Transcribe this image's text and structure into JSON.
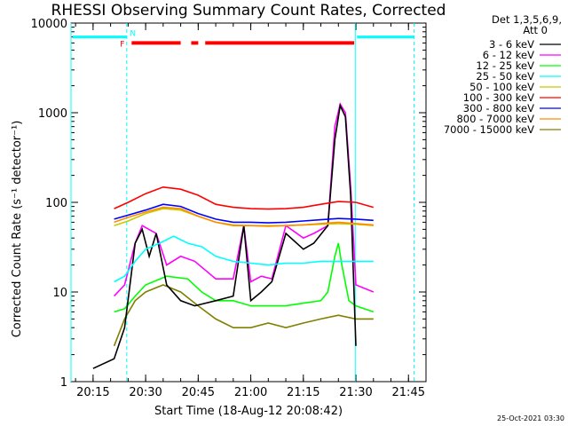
{
  "chart_data": {
    "type": "line",
    "title": "RHESSI Observing Summary Count Rates, Corrected",
    "xlabel": "Start Time (18-Aug-12 20:08:42)",
    "ylabel": "Corrected Count Rate (s⁻¹ detector⁻¹)",
    "yscale": "log",
    "ylim": [
      1,
      10000
    ],
    "xlim_minutes_since_2000": [
      1208.7,
      1310
    ],
    "x_ticks": [
      "20:15",
      "20:30",
      "20:45",
      "21:00",
      "21:15",
      "21:30",
      "21:45"
    ],
    "x_tick_minutes": [
      1215,
      1230,
      1245,
      1260,
      1275,
      1290,
      1305
    ],
    "y_ticks": [
      "1",
      "10",
      "100",
      "1000",
      "10000"
    ],
    "y_tick_values": [
      1,
      10,
      100,
      1000,
      10000
    ],
    "legend_header": [
      "Det 1,3,5,6,9,",
      "Att 0"
    ],
    "series": [
      {
        "name": "3 - 6 keV",
        "color": "#000000",
        "x": [
          1215,
          1221,
          1224,
          1227,
          1229,
          1231,
          1233,
          1236,
          1240,
          1244,
          1250,
          1255,
          1258,
          1260,
          1263,
          1266,
          1270,
          1275,
          1278,
          1282,
          1284,
          1285.5,
          1287,
          1288.5,
          1290
        ],
        "y": [
          1.4,
          1.8,
          4,
          35,
          50,
          25,
          45,
          12,
          8,
          7,
          8,
          9,
          55,
          8,
          10,
          13,
          45,
          30,
          35,
          55,
          500,
          1200,
          900,
          120,
          2.5
        ]
      },
      {
        "name": "6 - 12 keV",
        "color": "#ff00ff",
        "x": [
          1221,
          1224,
          1227,
          1229,
          1233,
          1236,
          1240,
          1244,
          1250,
          1255,
          1258,
          1260,
          1263,
          1266,
          1270,
          1275,
          1278,
          1282,
          1284,
          1285.5,
          1287,
          1288.5,
          1290,
          1295
        ],
        "y": [
          9,
          12,
          35,
          55,
          45,
          20,
          25,
          22,
          14,
          14,
          55,
          13,
          15,
          14,
          55,
          40,
          45,
          55,
          700,
          1250,
          1000,
          150,
          12,
          10
        ]
      },
      {
        "name": "12 - 25 keV",
        "color": "#00ff00",
        "x": [
          1221,
          1224,
          1227,
          1230,
          1236,
          1242,
          1246,
          1250,
          1255,
          1260,
          1265,
          1270,
          1275,
          1280,
          1282,
          1284,
          1285,
          1286,
          1288,
          1290,
          1295
        ],
        "y": [
          6,
          6.5,
          9,
          12,
          15,
          14,
          10,
          8,
          8,
          7,
          7,
          7,
          7.5,
          8,
          10,
          25,
          35,
          20,
          8,
          7,
          6
        ]
      },
      {
        "name": "25 - 50 keV",
        "color": "#00ffff",
        "x": [
          1221,
          1224,
          1227,
          1230,
          1234,
          1238,
          1242,
          1246,
          1250,
          1255,
          1260,
          1265,
          1270,
          1275,
          1280,
          1285,
          1290,
          1295
        ],
        "y": [
          13,
          15,
          22,
          30,
          35,
          42,
          35,
          32,
          25,
          22,
          21,
          20,
          21,
          21,
          22,
          22,
          22,
          22
        ]
      },
      {
        "name": "50 - 100 keV",
        "color": "#c8c800",
        "x": [
          1221,
          1225,
          1230,
          1235,
          1240,
          1245,
          1250,
          1255,
          1260,
          1265,
          1270,
          1275,
          1280,
          1285,
          1290,
          1295
        ],
        "y": [
          55,
          62,
          75,
          85,
          82,
          70,
          60,
          56,
          55,
          55,
          55,
          56,
          57,
          58,
          57,
          55
        ]
      },
      {
        "name": "100 - 300 keV",
        "color": "#ff0000",
        "x": [
          1221,
          1225,
          1230,
          1235,
          1240,
          1245,
          1250,
          1255,
          1260,
          1265,
          1270,
          1275,
          1280,
          1285,
          1290,
          1295
        ],
        "y": [
          85,
          100,
          125,
          148,
          140,
          120,
          95,
          88,
          85,
          84,
          85,
          88,
          95,
          102,
          100,
          88
        ]
      },
      {
        "name": "300 - 800 keV",
        "color": "#0000ff",
        "x": [
          1221,
          1225,
          1230,
          1235,
          1240,
          1245,
          1250,
          1255,
          1260,
          1265,
          1270,
          1275,
          1280,
          1285,
          1290,
          1295
        ],
        "y": [
          65,
          72,
          82,
          95,
          90,
          75,
          65,
          60,
          60,
          59,
          60,
          62,
          64,
          66,
          65,
          63
        ]
      },
      {
        "name": "800 - 7000 keV",
        "color": "#ff8c00",
        "x": [
          1221,
          1225,
          1230,
          1235,
          1240,
          1245,
          1250,
          1255,
          1260,
          1265,
          1270,
          1275,
          1280,
          1285,
          1290,
          1295
        ],
        "y": [
          60,
          68,
          78,
          88,
          85,
          70,
          60,
          55,
          55,
          54,
          55,
          56,
          58,
          60,
          58,
          56
        ]
      },
      {
        "name": "7000 - 15000 keV",
        "color": "#808000",
        "x": [
          1221,
          1224,
          1227,
          1230,
          1235,
          1240,
          1245,
          1250,
          1255,
          1260,
          1265,
          1270,
          1275,
          1280,
          1285,
          1290,
          1295
        ],
        "y": [
          2.5,
          5,
          8,
          10,
          12,
          10,
          7,
          5,
          4,
          4,
          4.5,
          4,
          4.5,
          5,
          5.5,
          5,
          5
        ]
      }
    ],
    "markers": {
      "flag_labels": [
        "F",
        "N"
      ],
      "cyan_level": 7000,
      "cyan_spans": [
        [
          1208.7,
          1224.6
        ],
        [
          1289.8,
          1306.6
        ]
      ],
      "red_level": 6000,
      "red_spans": [
        [
          1226,
          1240
        ],
        [
          1243,
          1245
        ],
        [
          1247,
          1289.5
        ]
      ],
      "cyan_solid_x": [
        1208.7,
        1289.8
      ],
      "cyan_dashed_x": [
        1224.6,
        1306.6
      ]
    }
  },
  "timestamp": "25-Oct-2021 03:30"
}
